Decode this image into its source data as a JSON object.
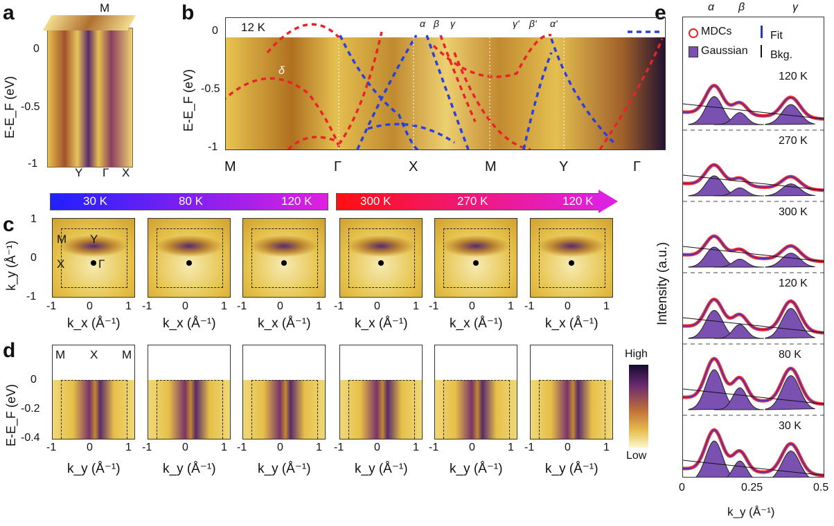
{
  "panel_labels": [
    "a",
    "b",
    "c",
    "d",
    "e"
  ],
  "a": {
    "top_label": "M",
    "yticks": [
      "0",
      "-0.5",
      "-1"
    ],
    "ylabel": "E-E_F (eV)",
    "bottom_labels": [
      "Y",
      "Γ",
      "X"
    ]
  },
  "b": {
    "temperature": "12 K",
    "band_label": "δ",
    "yticks": [
      "0",
      "-0.5",
      "-1"
    ],
    "ylabel": "E-E_F (eV)",
    "xticks": [
      "M",
      "Γ",
      "X",
      "M",
      "Y",
      "Γ"
    ],
    "greek_labels": [
      "α",
      "β",
      "γ",
      "γ'",
      "β'",
      "α'"
    ],
    "dispersion_colors": {
      "red": "#e8232a",
      "blue": "#2a3fe0"
    }
  },
  "temperature_bar": {
    "warming": {
      "labels": [
        "30 K",
        "80 K",
        "120 K"
      ],
      "colors": [
        "#2020ff",
        "#e020e0"
      ]
    },
    "cooling": {
      "labels": [
        "300 K",
        "270 K",
        "120 K"
      ],
      "colors": [
        "#ff1010",
        "#e020e0"
      ]
    }
  },
  "c": {
    "corner_labels": [
      "M",
      "Y",
      "X",
      "Γ"
    ],
    "yticks": [
      "1",
      "0",
      "-1"
    ],
    "ylabel": "k_y (Å⁻¹)",
    "xticks": [
      "-1",
      "0",
      "1"
    ],
    "xlabel": "k_x (Å⁻¹)",
    "count": 6
  },
  "d": {
    "corner_labels": [
      "M",
      "X",
      "M"
    ],
    "yticks": [
      "0",
      "-0.2",
      "-0.4"
    ],
    "ylabel": "E-E_F (eV)",
    "xticks": [
      "-1",
      "0",
      "1"
    ],
    "xlabel": "k_y (Å⁻¹)",
    "colorbar": {
      "high": "High",
      "low": "Low"
    },
    "count": 6
  },
  "e": {
    "peak_labels": [
      "α",
      "β",
      "γ"
    ],
    "legend": {
      "mdcs": "MDCs",
      "fit": "Fit",
      "gaussian": "Gaussian",
      "bkg": "Bkg."
    },
    "temperatures": [
      "120 K",
      "270 K",
      "300 K",
      "120 K",
      "80 K",
      "30 K"
    ],
    "xticks": [
      "0",
      "0.25",
      "0.5"
    ],
    "xlabel": "k_y (Å⁻¹)",
    "ylabel": "Intensity (a.u.)"
  }
}
